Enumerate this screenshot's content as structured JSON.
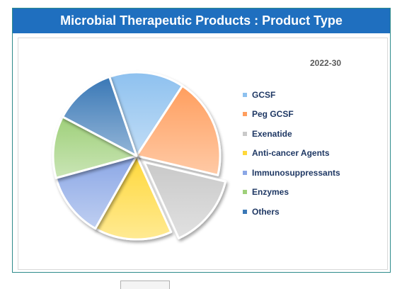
{
  "chart_data": {
    "type": "pie",
    "title": "Microbial Therapeutic Products : Product Type",
    "subtitle": "2022-30",
    "categories": [
      "GCSF",
      "Peg GCSF",
      "Exenatide",
      "Anti-cancer Agents",
      "Immunosuppressants",
      "Enzymes",
      "Others"
    ],
    "values": [
      14.5,
      19.5,
      14.5,
      15,
      12.5,
      12,
      12
    ],
    "colors": [
      "#8ec1ef",
      "#ff9e5e",
      "#c9c9c9",
      "#ffd83a",
      "#8ba7e6",
      "#9fd07a",
      "#3a78b6"
    ],
    "exploded": [
      "Exenatide"
    ],
    "legend_position": "right",
    "start_angle_deg": 251,
    "direction": "clockwise"
  }
}
